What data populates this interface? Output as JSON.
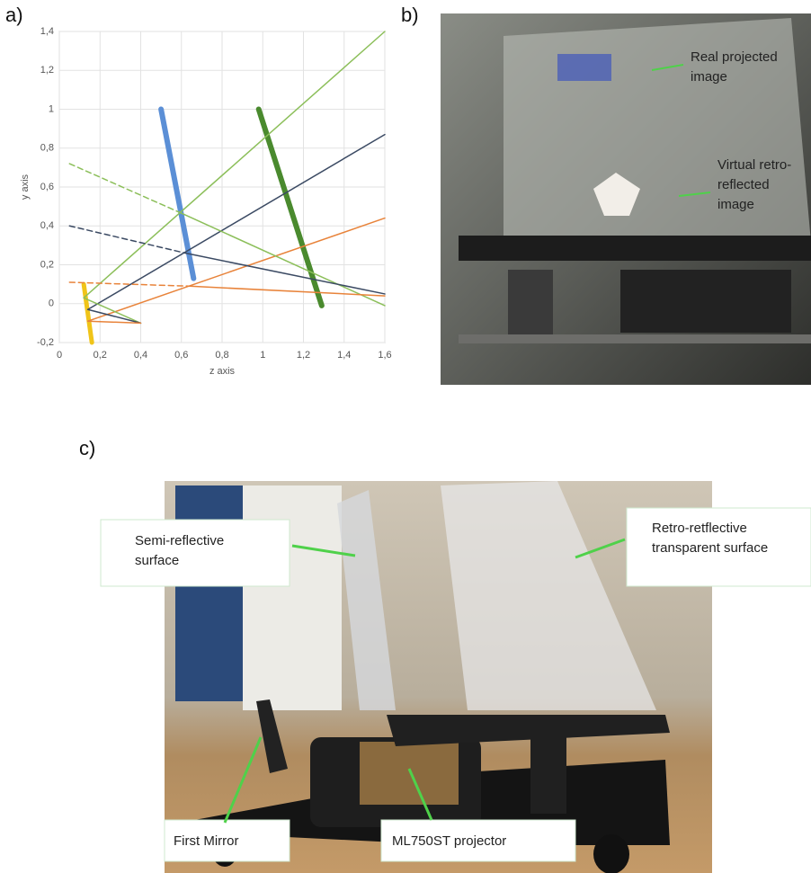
{
  "panel_labels": [
    "a)",
    "b)",
    "c)"
  ],
  "chart_data": {
    "type": "line",
    "xlabel": "z axis",
    "ylabel": "y axis",
    "xlim": [
      0,
      1.6
    ],
    "ylim": [
      -0.2,
      1.4
    ],
    "xticks": [
      {
        "value": 0,
        "label": "0"
      },
      {
        "value": 0.2,
        "label": "0,2"
      },
      {
        "value": 0.4,
        "label": "0,4"
      },
      {
        "value": 0.6,
        "label": "0,6"
      },
      {
        "value": 0.8,
        "label": "0,8"
      },
      {
        "value": 1,
        "label": "1"
      },
      {
        "value": 1.2,
        "label": "1,2"
      },
      {
        "value": 1.4,
        "label": "1,4"
      },
      {
        "value": 1.6,
        "label": "1,6"
      }
    ],
    "yticks": [
      {
        "value": -0.2,
        "label": "-0,2"
      },
      {
        "value": 0,
        "label": "0"
      },
      {
        "value": 0.2,
        "label": "0,2"
      },
      {
        "value": 0.4,
        "label": "0,4"
      },
      {
        "value": 0.6,
        "label": "0,6"
      },
      {
        "value": 0.8,
        "label": "0,8"
      },
      {
        "value": 1,
        "label": "1"
      },
      {
        "value": 1.2,
        "label": "1,2"
      },
      {
        "value": 1.4,
        "label": "1,4"
      }
    ],
    "grid": true,
    "series": [
      {
        "color": "#5b8fd6",
        "width": 6,
        "x": [
          0.5,
          0.66
        ],
        "values": [
          1.0,
          0.13
        ]
      },
      {
        "color": "#4a8a2e",
        "width": 6,
        "x": [
          0.98,
          1.29
        ],
        "values": [
          1.0,
          -0.01
        ]
      },
      {
        "color": "#f0c419",
        "width": 5,
        "x": [
          0.12,
          0.16
        ],
        "values": [
          0.1,
          -0.2
        ]
      },
      {
        "color": "#8cbf5a",
        "width": 1.5,
        "x": [
          0.12,
          1.6
        ],
        "values": [
          0.03,
          1.4
        ]
      },
      {
        "color": "#3b4a63",
        "width": 1.5,
        "x": [
          0.14,
          1.6
        ],
        "values": [
          -0.03,
          0.87
        ]
      },
      {
        "color": "#e8833a",
        "width": 1.5,
        "x": [
          0.14,
          1.6
        ],
        "values": [
          -0.09,
          0.44
        ]
      },
      {
        "color": "#8cbf5a",
        "width": 1.5,
        "dashed": true,
        "x": [
          0.05,
          0.59
        ],
        "values": [
          0.72,
          0.47
        ]
      },
      {
        "color": "#8cbf5a",
        "width": 1.5,
        "x": [
          0.59,
          1.6
        ],
        "values": [
          0.47,
          -0.01
        ]
      },
      {
        "color": "#3b4a63",
        "width": 1.5,
        "dashed": true,
        "x": [
          0.05,
          0.62
        ],
        "values": [
          0.4,
          0.26
        ]
      },
      {
        "color": "#3b4a63",
        "width": 1.5,
        "x": [
          0.62,
          1.6
        ],
        "values": [
          0.26,
          0.05
        ]
      },
      {
        "color": "#e8833a",
        "width": 1.5,
        "dashed": true,
        "x": [
          0.05,
          0.64
        ],
        "values": [
          0.11,
          0.09
        ]
      },
      {
        "color": "#e8833a",
        "width": 1.5,
        "x": [
          0.64,
          1.6
        ],
        "values": [
          0.09,
          0.04
        ]
      },
      {
        "color": "#8cbf5a",
        "width": 1.5,
        "x": [
          0.12,
          0.4
        ],
        "values": [
          0.03,
          -0.1
        ]
      },
      {
        "color": "#3b4a63",
        "width": 1.5,
        "x": [
          0.14,
          0.4
        ],
        "values": [
          -0.03,
          -0.1
        ]
      },
      {
        "color": "#e8833a",
        "width": 1.5,
        "x": [
          0.14,
          0.4
        ],
        "values": [
          -0.09,
          -0.1
        ]
      }
    ]
  },
  "photo_b": {
    "annotations": [
      [
        "Real projected",
        "image"
      ],
      [
        "Virtual retro-",
        "reflected",
        "image"
      ]
    ]
  },
  "photo_c": {
    "annotations": [
      [
        "Semi-reflective",
        "surface"
      ],
      [
        "Retro-retflective",
        "transparent surface"
      ],
      [
        "First Mirror"
      ],
      [
        "ML750ST projector"
      ]
    ]
  }
}
